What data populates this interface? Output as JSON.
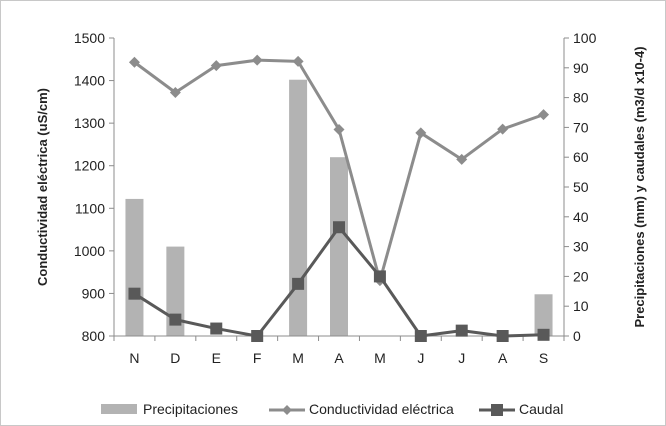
{
  "chart_data": {
    "type": "bar+line",
    "categories": [
      "N",
      "D",
      "E",
      "F",
      "M",
      "A",
      "M",
      "J",
      "J",
      "A",
      "S"
    ],
    "y_left": {
      "label": "Conductividad eléctrica (uS/cm)",
      "lim": [
        800,
        1500
      ],
      "ticks": [
        "800",
        "900",
        "1000",
        "1100",
        "1200",
        "1300",
        "1400",
        "1500"
      ]
    },
    "y_right": {
      "label": "Precipitaciones (mm) y caudales (m3/d x10-4)",
      "lim": [
        0,
        100
      ],
      "ticks": [
        "0",
        "10",
        "20",
        "30",
        "40",
        "50",
        "60",
        "70",
        "80",
        "90",
        "100"
      ]
    },
    "series": [
      {
        "name": "Precipitaciones",
        "kind": "bar",
        "axis": "right",
        "color": "#b3b3b3",
        "values": [
          46,
          30,
          0,
          0,
          86,
          60,
          0,
          0,
          0,
          0,
          14
        ]
      },
      {
        "name": "Conductividad eléctrica",
        "kind": "line",
        "axis": "left",
        "marker": "diamond",
        "color": "#8c8c8c",
        "values": [
          1443,
          1372,
          1435,
          1448,
          1445,
          1285,
          930,
          1277,
          1215,
          1286,
          1320
        ]
      },
      {
        "name": "Caudal",
        "kind": "line",
        "axis": "right",
        "marker": "square",
        "color": "#595959",
        "values": [
          14.2,
          5.5,
          2.5,
          0,
          17.5,
          36.5,
          20,
          0,
          1.8,
          0,
          0.4
        ]
      }
    ],
    "grid": false,
    "legend": "bottom"
  }
}
